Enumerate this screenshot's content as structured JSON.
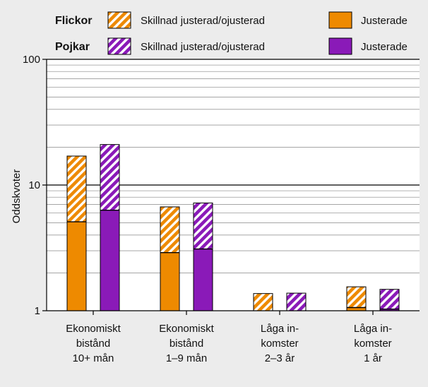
{
  "chart_data": {
    "type": "bar",
    "stacked": true,
    "yscale": "log",
    "ylim": [
      1,
      100
    ],
    "ylabel": "Oddskvoter",
    "yticks": [
      {
        "value": 1,
        "label": "1"
      },
      {
        "value": 10,
        "label": "10"
      },
      {
        "value": 100,
        "label": "100"
      }
    ],
    "categories": [
      [
        "Ekonomiskt",
        "bistånd",
        "10+ mån"
      ],
      [
        "Ekonomiskt",
        "bistånd",
        "1–9 mån"
      ],
      [
        "Låga in-",
        "komster",
        "2–3 år"
      ],
      [
        "Låga in-",
        "komster",
        "1 år"
      ]
    ],
    "groups": [
      {
        "name": "Flickor",
        "color": "#ee8a00",
        "adjusted_label": "Justerade",
        "diff_label": "Skillnad justerad/ojusterad",
        "adjusted": [
          5.1,
          2.9,
          1.0,
          1.06
        ],
        "unadjusted": [
          17,
          6.7,
          1.37,
          1.55
        ]
      },
      {
        "name": "Pojkar",
        "color": "#8a1ab8",
        "adjusted_label": "Justerade",
        "diff_label": "Skillnad justerad/ojusterad",
        "adjusted": [
          6.3,
          3.1,
          1.0,
          1.03
        ],
        "unadjusted": [
          21,
          7.2,
          1.38,
          1.48
        ]
      }
    ],
    "grid": true,
    "legend_position": "top"
  }
}
